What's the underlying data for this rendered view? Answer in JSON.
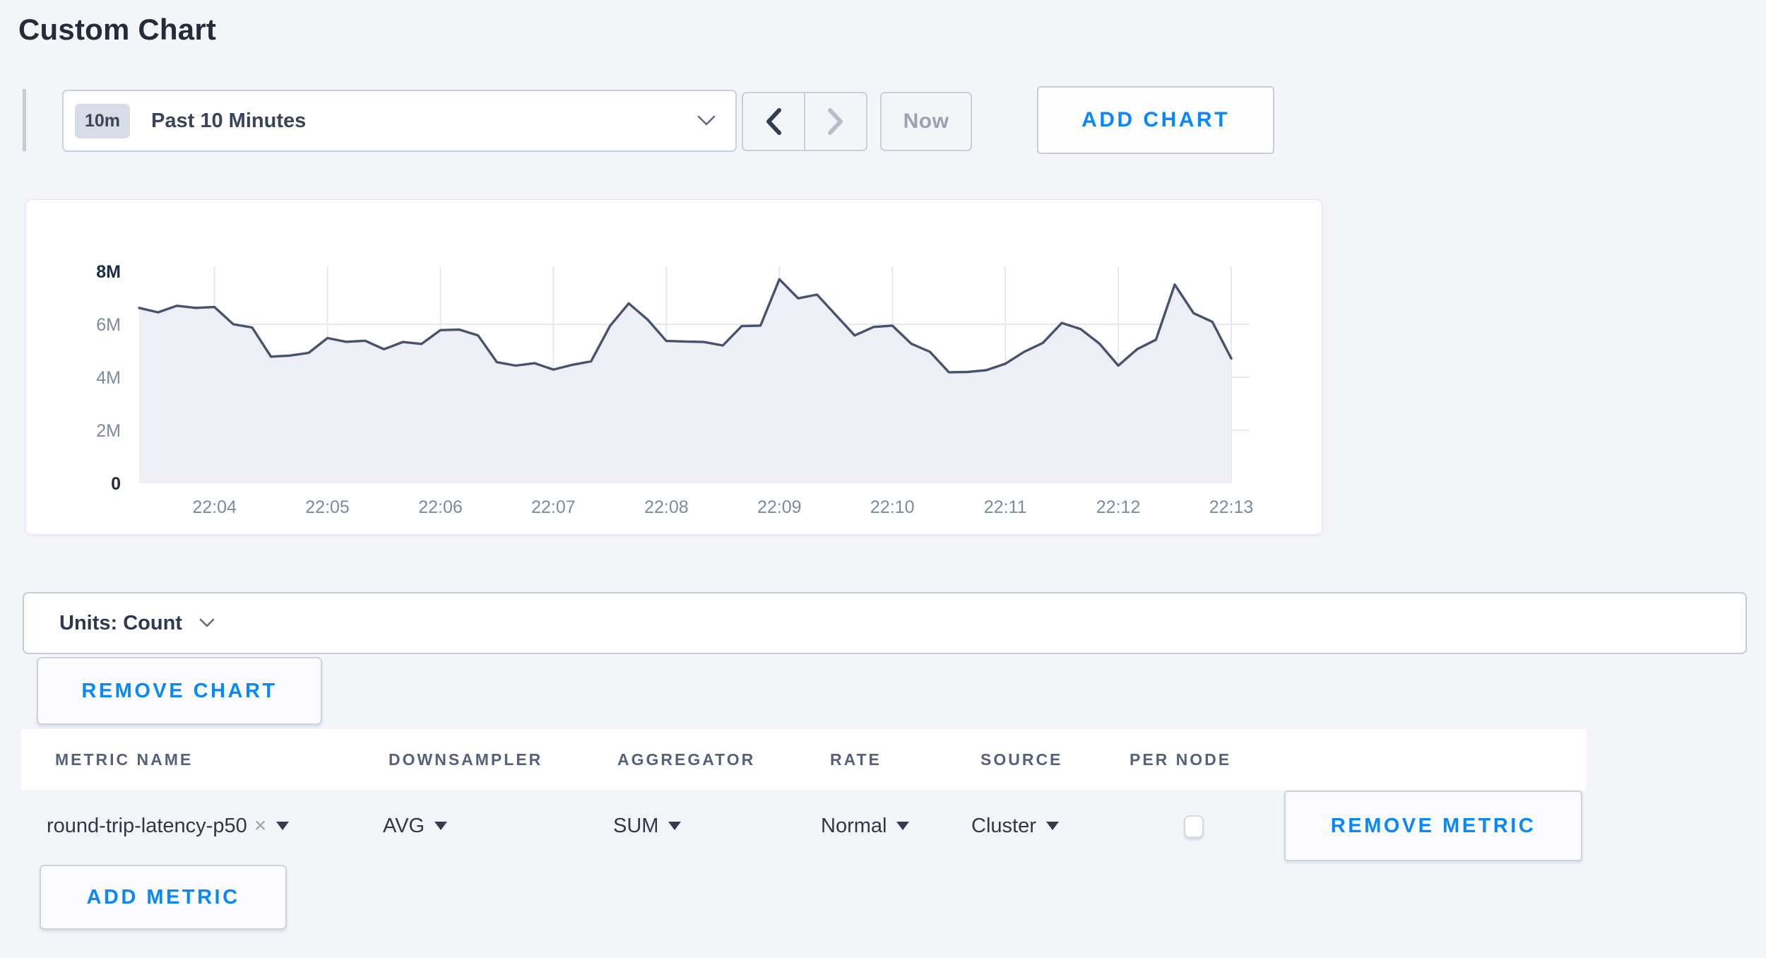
{
  "page": {
    "title": "Custom Chart"
  },
  "toolbar": {
    "range_badge": "10m",
    "range_label": "Past 10 Minutes",
    "prev_icon": "chevron-left",
    "next_icon": "chevron-right",
    "now_label": "Now",
    "add_chart_label": "ADD CHART"
  },
  "chart_data": {
    "type": "area",
    "title": "",
    "xlabel": "",
    "ylabel": "",
    "ylim": [
      0,
      8000000
    ],
    "y_tick_labels": [
      "8M",
      "6M",
      "4M",
      "2M",
      "0"
    ],
    "y_tick_values_millions": [
      8,
      6,
      4,
      2,
      0
    ],
    "y_gridlines_millions": [
      6,
      4,
      2
    ],
    "x_tick_labels": [
      "22:04",
      "22:05",
      "22:06",
      "22:07",
      "22:08",
      "22:09",
      "22:10",
      "22:11",
      "22:12",
      "22:13"
    ],
    "start_time": "22:03:20",
    "end_time": "22:13:00",
    "interval_seconds": 10,
    "grid": true,
    "legend": "none",
    "series": [
      {
        "name": "round-trip-latency-p50 (SUM of AVG)",
        "unit": "Count",
        "values_millions": [
          6.62,
          6.45,
          6.7,
          6.62,
          6.65,
          6.0,
          5.88,
          4.78,
          4.82,
          4.92,
          5.48,
          5.34,
          5.38,
          5.06,
          5.33,
          5.26,
          5.78,
          5.8,
          5.58,
          4.57,
          4.44,
          4.53,
          4.29,
          4.47,
          4.6,
          5.93,
          6.79,
          6.18,
          5.37,
          5.35,
          5.33,
          5.2,
          5.93,
          5.95,
          7.7,
          6.98,
          7.12,
          6.35,
          5.58,
          5.9,
          5.95,
          5.27,
          4.96,
          4.19,
          4.2,
          4.27,
          4.51,
          4.96,
          5.3,
          6.05,
          5.82,
          5.27,
          4.44,
          5.06,
          5.42,
          7.5,
          6.42,
          6.09,
          4.71
        ]
      }
    ],
    "line_color": "#47536e",
    "fill_color": "#edeff5",
    "gridline_color": "#e4e8f0",
    "axis_label_color": "#7d89a3",
    "axis_label_strong_color": "#1c2b46"
  },
  "units_bar": {
    "label": "Units: Count"
  },
  "chart_actions": {
    "remove_chart_label": "REMOVE CHART"
  },
  "metrics_table": {
    "columns": [
      "METRIC NAME",
      "DOWNSAMPLER",
      "AGGREGATOR",
      "RATE",
      "SOURCE",
      "PER NODE"
    ],
    "rows": [
      {
        "metric_name": "round-trip-latency-p50",
        "clear_icon": "x-clear",
        "downsampler": "AVG",
        "aggregator": "SUM",
        "rate": "Normal",
        "source": "Cluster",
        "per_node_checked": false,
        "remove_label": "REMOVE METRIC"
      }
    ],
    "add_metric_label": "ADD METRIC"
  },
  "colors": {
    "page_background": "#f4f5f9",
    "panel_background": "#ffffff",
    "control_border": "#c9cfdd",
    "accent_blue": "#0788ff",
    "text_dark": "#242c3c",
    "text_muted": "#9aa2b2"
  }
}
